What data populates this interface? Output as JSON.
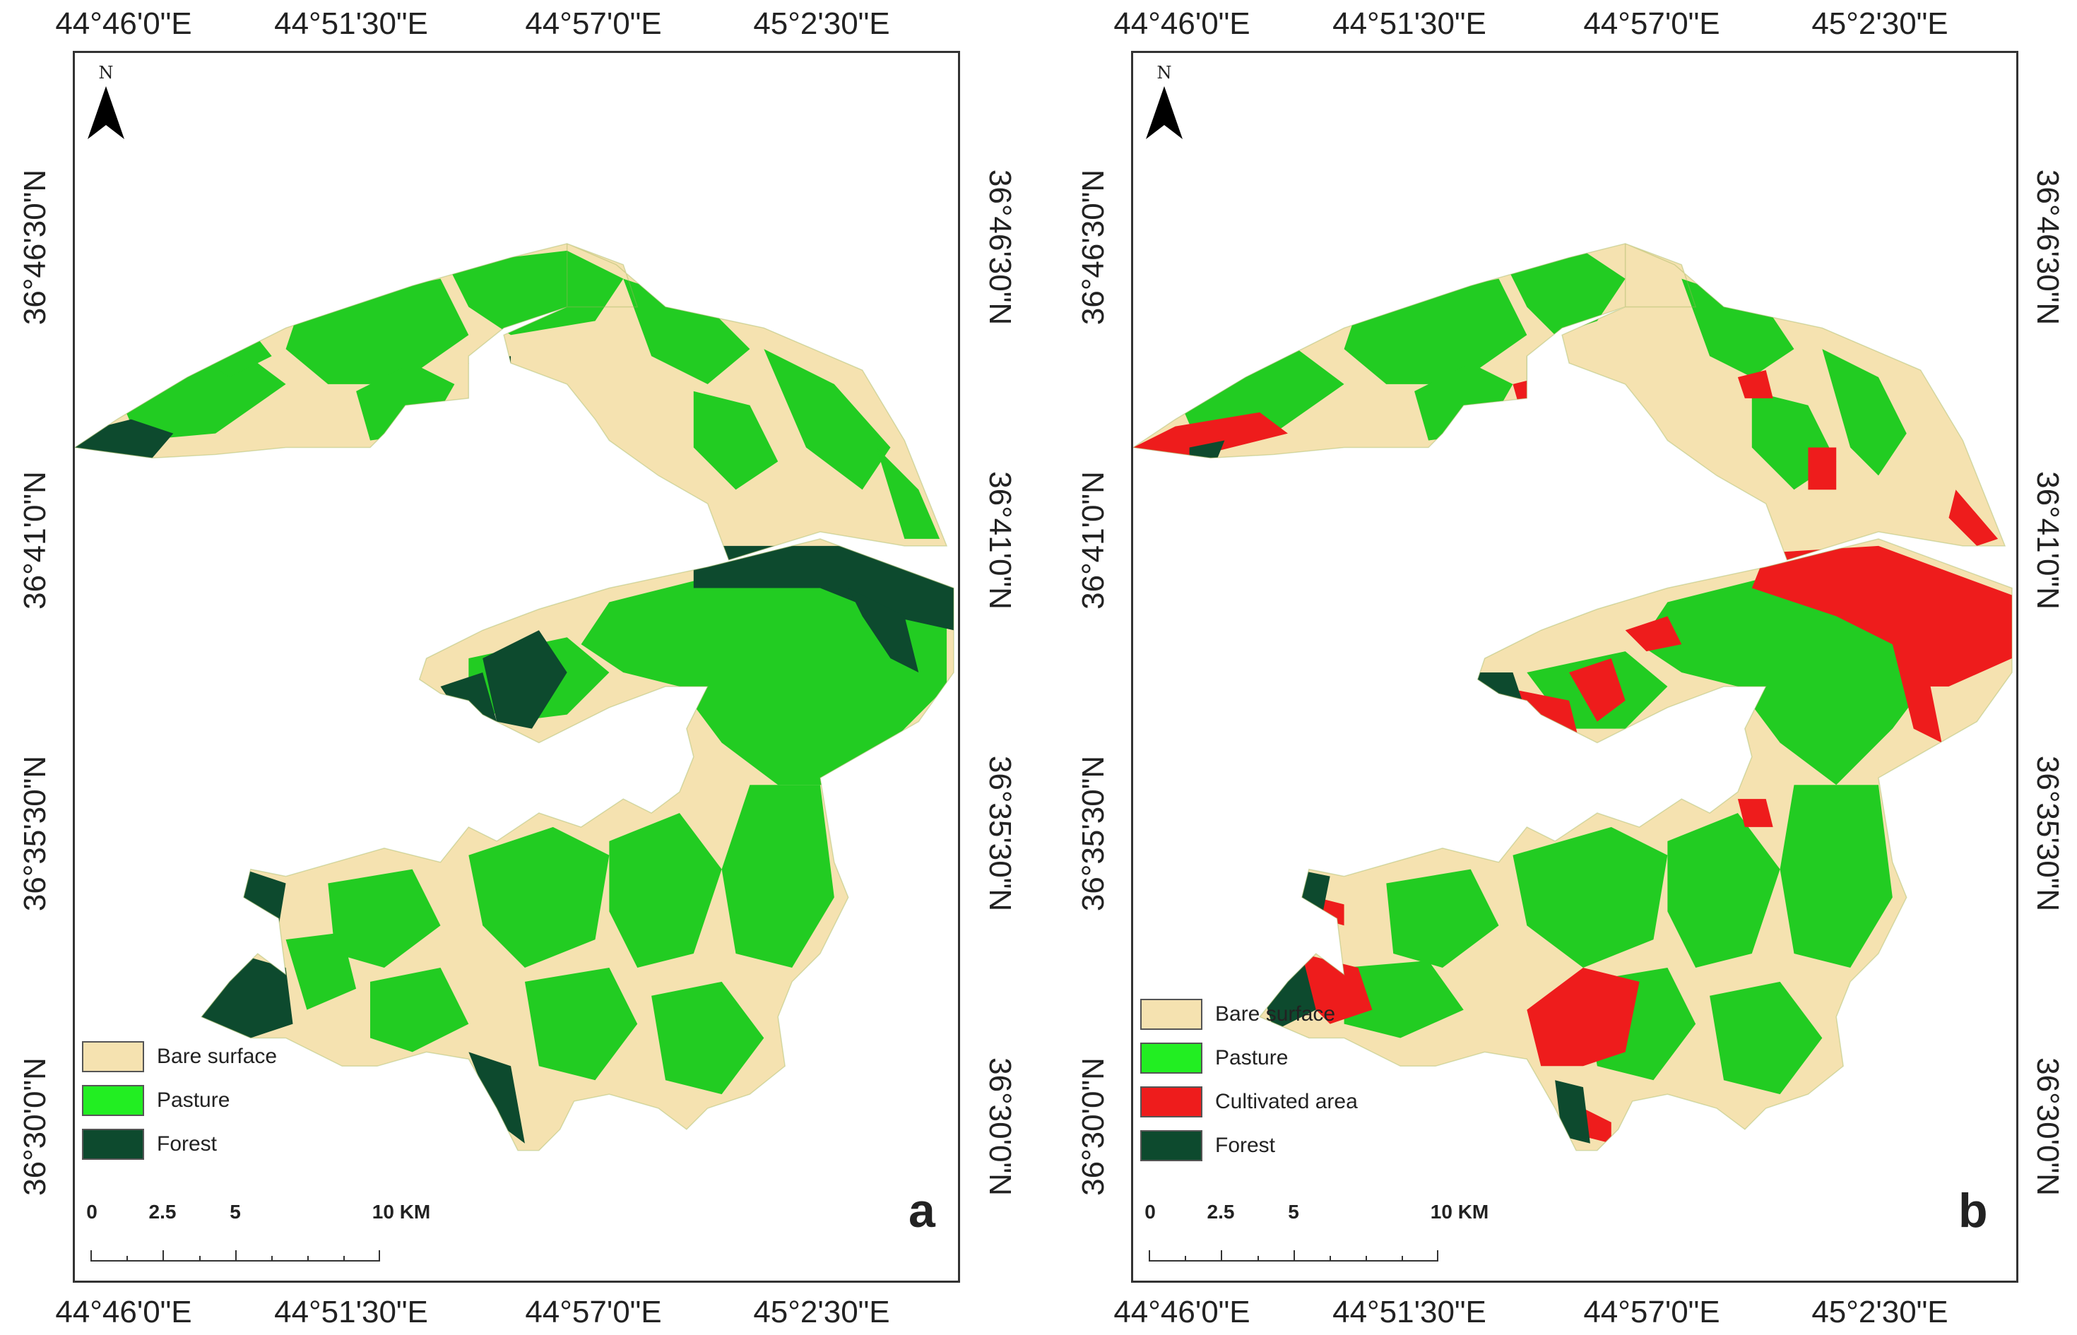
{
  "colors": {
    "bare": "#f5e2b0",
    "pasture": "#22cc22",
    "cultivated": "#ee1c1c",
    "forest": "#0d4a2e"
  },
  "axes": {
    "lon_labels": [
      "44°46'0\"E",
      "44°51'30\"E",
      "44°57'0\"E",
      "45°2'30\"E"
    ],
    "lat_labels": [
      "36°46'30\"N",
      "36°41'0\"N",
      "36°35'30\"N",
      "36°30'0\"N"
    ]
  },
  "north": {
    "label": "N",
    "icon": "north-arrow-icon"
  },
  "scale": {
    "labels": [
      "0",
      "2.5",
      "5",
      "10 KM"
    ]
  },
  "panels": {
    "a": {
      "letter": "a",
      "legend": [
        "Bare surface",
        "Pasture",
        "Forest"
      ]
    },
    "b": {
      "letter": "b",
      "legend": [
        "Bare surface",
        "Pasture",
        "Cultivated area",
        "Forest"
      ]
    }
  }
}
